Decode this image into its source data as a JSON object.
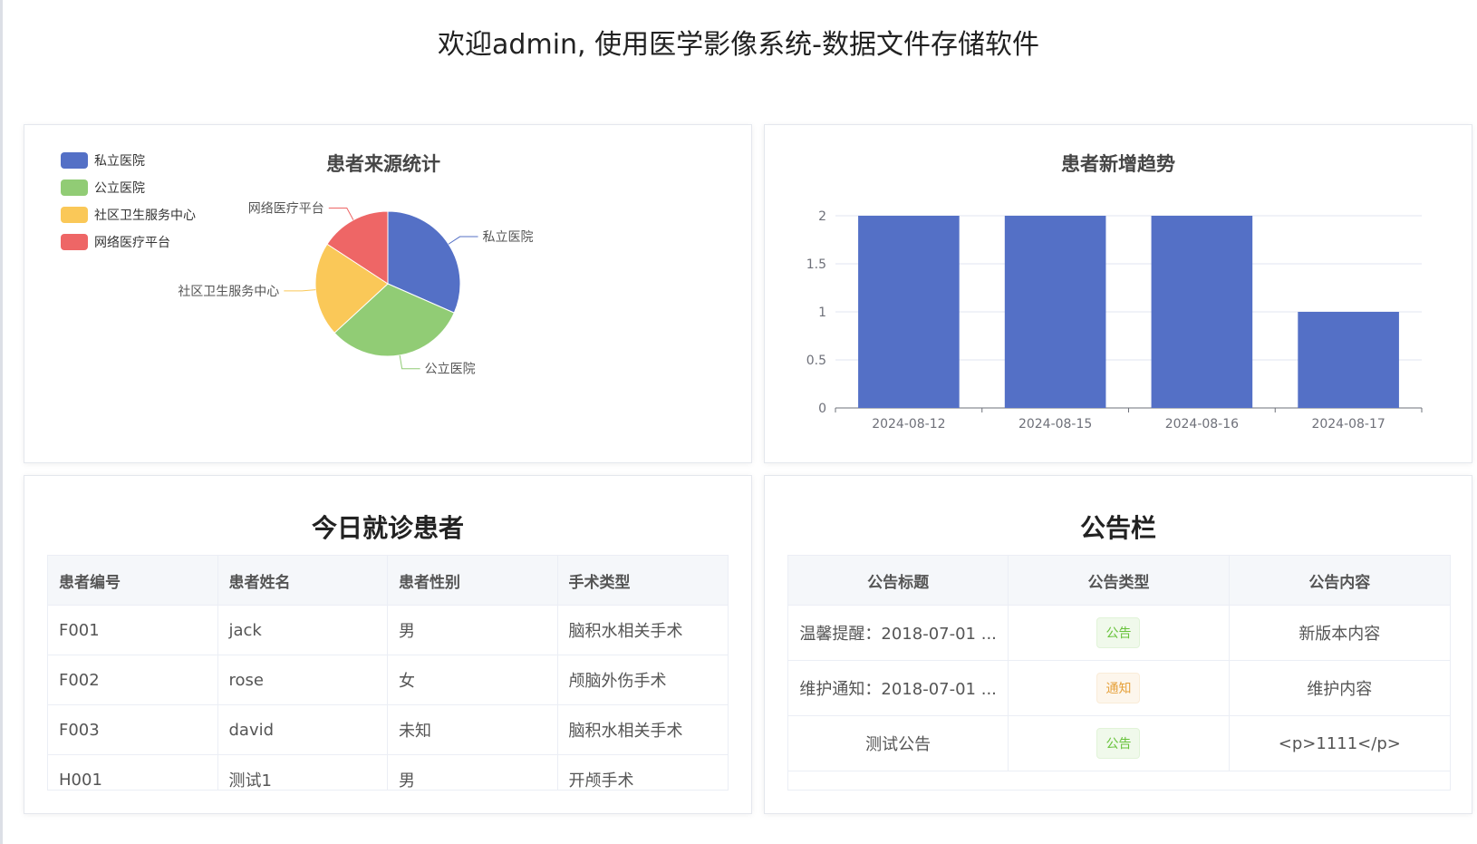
{
  "header": {
    "title": "欢迎admin, 使用医学影像系统-数据文件存储软件"
  },
  "colors": {
    "blue": "#5470c6",
    "green": "#91cc75",
    "yellow": "#fac858",
    "red": "#ee6666"
  },
  "pie": {
    "title": "患者来源统计"
  },
  "bar": {
    "title": "患者新增趋势"
  },
  "chart_data": [
    {
      "type": "pie",
      "title": "患者来源统计",
      "legend_position": "top-left",
      "slices": [
        {
          "name": "私立医院",
          "value": 3,
          "color": "#5470c6"
        },
        {
          "name": "公立医院",
          "value": 3,
          "color": "#91cc75"
        },
        {
          "name": "社区卫生服务中心",
          "value": 2,
          "color": "#fac858"
        },
        {
          "name": "网络医疗平台",
          "value": 1.5,
          "color": "#ee6666"
        }
      ]
    },
    {
      "type": "bar",
      "title": "患者新增趋势",
      "categories": [
        "2024-08-12",
        "2024-08-15",
        "2024-08-16",
        "2024-08-17"
      ],
      "values": [
        2,
        2,
        2,
        1
      ],
      "ylim": [
        0,
        2
      ],
      "yticks": [
        "0",
        "0.5",
        "1",
        "1.5",
        "2"
      ],
      "grid": true,
      "color": "#5470c6"
    }
  ],
  "patients": {
    "title": "今日就诊患者",
    "columns": [
      "患者编号",
      "患者姓名",
      "患者性别",
      "手术类型"
    ],
    "rows": [
      [
        "F001",
        "jack",
        "男",
        "脑积水相关手术"
      ],
      [
        "F002",
        "rose",
        "女",
        "颅脑外伤手术"
      ],
      [
        "F003",
        "david",
        "未知",
        "脑积水相关手术"
      ],
      [
        "H001",
        "测试1",
        "男",
        "开颅手术"
      ]
    ]
  },
  "notices": {
    "title": "公告栏",
    "columns": [
      "公告标题",
      "公告类型",
      "公告内容"
    ],
    "rows": [
      {
        "title": "温馨提醒：2018-07-01 ...",
        "type": "公告",
        "tag": "green",
        "content": "新版本内容"
      },
      {
        "title": "维护通知：2018-07-01 ...",
        "type": "通知",
        "tag": "orange",
        "content": "维护内容"
      },
      {
        "title": "测试公告",
        "type": "公告",
        "tag": "green",
        "content": "<p>1111</p>"
      }
    ]
  }
}
